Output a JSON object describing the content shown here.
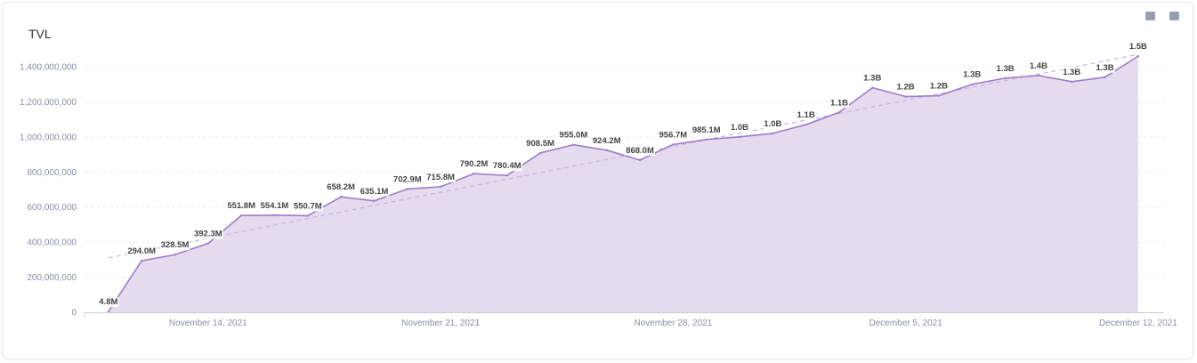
{
  "toolbar": {
    "copy_icon": "copy-icon",
    "camera_icon": "camera-icon"
  },
  "chart_data": {
    "type": "area",
    "title": "TVL",
    "xlabel": "",
    "ylabel": "",
    "x": [
      "2021-11-11",
      "2021-11-12",
      "2021-11-13",
      "2021-11-14",
      "2021-11-15",
      "2021-11-16",
      "2021-11-17",
      "2021-11-18",
      "2021-11-19",
      "2021-11-20",
      "2021-11-21",
      "2021-11-22",
      "2021-11-23",
      "2021-11-24",
      "2021-11-25",
      "2021-11-26",
      "2021-11-27",
      "2021-11-28",
      "2021-11-29",
      "2021-11-30",
      "2021-12-01",
      "2021-12-02",
      "2021-12-03",
      "2021-12-04",
      "2021-12-05",
      "2021-12-06",
      "2021-12-07",
      "2021-12-08",
      "2021-12-09",
      "2021-12-10",
      "2021-12-11",
      "2021-12-12"
    ],
    "values": [
      4800000.0,
      294000000.0,
      328500000.0,
      392300000.0,
      551800000.0,
      554100000.0,
      550700000.0,
      658200000.0,
      635100000.0,
      702900000.0,
      715800000.0,
      790200000.0,
      780400000.0,
      908500000.0,
      955000000.0,
      924200000.0,
      868000000.0,
      956700000.0,
      985100000.0,
      1000000000.0,
      1020000000.0,
      1070000000.0,
      1140000000.0,
      1280000000.0,
      1230000000.0,
      1235000000.0,
      1300000000.0,
      1335000000.0,
      1350000000.0,
      1315000000.0,
      1340000000.0,
      1460000000.0
    ],
    "data_labels": [
      "4.8M",
      "294.0M",
      "328.5M",
      "392.3M",
      "551.8M",
      "554.1M",
      "550.7M",
      "658.2M",
      "635.1M",
      "702.9M",
      "715.8M",
      "790.2M",
      "780.4M",
      "908.5M",
      "955.0M",
      "924.2M",
      "868.0M",
      "956.7M",
      "985.1M",
      "1.0B",
      "1.0B",
      "1.1B",
      "1.1B",
      "1.3B",
      "1.2B",
      "1.2B",
      "1.3B",
      "1.3B",
      "1.4B",
      "1.3B",
      "1.3B",
      "1.5B"
    ],
    "trendline": {
      "start": 310000000.0,
      "end": 1470000000.0,
      "style": "dashed"
    },
    "y_ticks": [
      0,
      200000000,
      400000000,
      600000000,
      800000000,
      1000000000,
      1200000000,
      1400000000
    ],
    "y_tick_labels": [
      "0",
      "200,000,000",
      "400,000,000",
      "600,000,000",
      "800,000,000",
      "1,000,000,000",
      "1,200,000,000",
      "1,400,000,000"
    ],
    "x_tick_labels": [
      {
        "index": 3,
        "label": "November 14, 2021"
      },
      {
        "index": 10,
        "label": "November 21, 2021"
      },
      {
        "index": 17,
        "label": "November 28, 2021"
      },
      {
        "index": 24,
        "label": "December 5, 2021"
      },
      {
        "index": 31,
        "label": "December 12, 2021"
      }
    ],
    "ylim": [
      0,
      1400000000
    ],
    "grid": true,
    "legend": "none",
    "colors": {
      "line": "#9b7ec8",
      "fill": "#e5daee",
      "trend": "#c9b8e0",
      "grid": "#ececf0"
    }
  }
}
